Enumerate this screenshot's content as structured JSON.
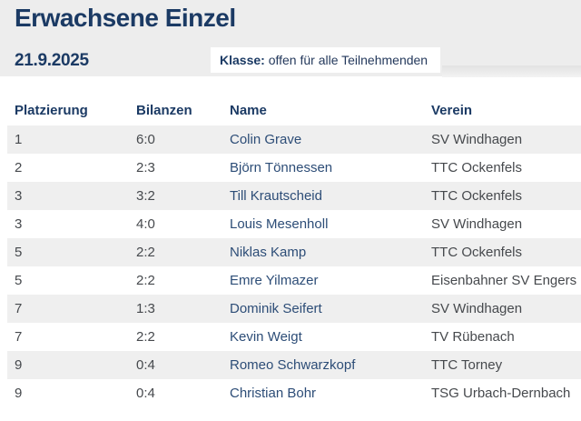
{
  "header": {
    "title": "Erwachsene Einzel",
    "date": "21.9.2025",
    "klasse_label": "Klasse:",
    "klasse_value": "offen für alle Teilnehmenden"
  },
  "table": {
    "columns": [
      "Platzierung",
      "Bilanzen",
      "Name",
      "Verein"
    ],
    "rows": [
      {
        "platzierung": "1",
        "bilanzen": "6:0",
        "name": "Colin Grave",
        "verein": "SV Windhagen"
      },
      {
        "platzierung": "2",
        "bilanzen": "2:3",
        "name": "Björn Tönnessen",
        "verein": "TTC Ockenfels"
      },
      {
        "platzierung": "3",
        "bilanzen": "3:2",
        "name": "Till Krautscheid",
        "verein": "TTC Ockenfels"
      },
      {
        "platzierung": "3",
        "bilanzen": "4:0",
        "name": "Louis Mesenholl",
        "verein": "SV Windhagen"
      },
      {
        "platzierung": "5",
        "bilanzen": "2:2",
        "name": "Niklas Kamp",
        "verein": "TTC Ockenfels"
      },
      {
        "platzierung": "5",
        "bilanzen": "2:2",
        "name": "Emre Yilmazer",
        "verein": "Eisenbahner SV Engers"
      },
      {
        "platzierung": "7",
        "bilanzen": "1:3",
        "name": "Dominik Seifert",
        "verein": "SV Windhagen"
      },
      {
        "platzierung": "7",
        "bilanzen": "2:2",
        "name": "Kevin Weigt",
        "verein": "TV Rübenach"
      },
      {
        "platzierung": "9",
        "bilanzen": "0:4",
        "name": "Romeo Schwarzkopf",
        "verein": "TTC Torney"
      },
      {
        "platzierung": "9",
        "bilanzen": "0:4",
        "name": "Christian Bohr",
        "verein": "TSG Urbach-Dernbach"
      }
    ]
  },
  "colors": {
    "brand_navy": "#1b3a64",
    "name_link": "#2d4d77",
    "body_text": "#46494d",
    "header_bg": "#ededed",
    "row_stripe": "#efefef",
    "page_bg": "#ffffff"
  }
}
